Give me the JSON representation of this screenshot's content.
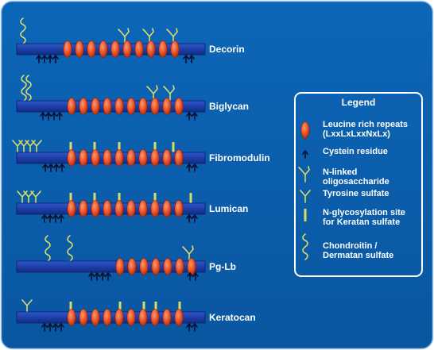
{
  "colors": {
    "background": "#0a5fae",
    "frame": "#ffffff",
    "core": "#1d3fa8",
    "core_edge": "#0b1f6e",
    "repeat": "#e8542a",
    "repeat_edge": "#8a1c08",
    "glycan": "#d8dc6a",
    "cysteine": "#0a1030"
  },
  "proteins": [
    {
      "name": "Decorin",
      "repeats": 10,
      "glycan_icons": [
        "chondroitin-dermatan-sulfate",
        "n-linked-oligosaccharide"
      ]
    },
    {
      "name": "Biglycan",
      "repeats": 10,
      "glycan_icons": [
        "chondroitin-dermatan-sulfate",
        "n-linked-oligosaccharide"
      ]
    },
    {
      "name": "Fibromodulin",
      "repeats": 10,
      "glycan_icons": [
        "tyrosine-sulfate",
        "n-glycosylation-site"
      ]
    },
    {
      "name": "Lumican",
      "repeats": 10,
      "glycan_icons": [
        "tyrosine-sulfate",
        "n-glycosylation-site"
      ]
    },
    {
      "name": "Pg-Lb",
      "repeats": 7,
      "glycan_icons": [
        "chondroitin-dermatan-sulfate",
        "n-linked-oligosaccharide"
      ]
    },
    {
      "name": "Keratocan",
      "repeats": 10,
      "glycan_icons": [
        "tyrosine-sulfate",
        "n-glycosylation-site"
      ]
    }
  ],
  "legend": {
    "title": "Legend",
    "items": [
      {
        "icon": "leucine-rich-repeat",
        "lines": [
          "Leucine rich repeats",
          "(LxxLxLxxNxLx)"
        ]
      },
      {
        "icon": "cysteine-residue",
        "lines": [
          "Cystein residue"
        ]
      },
      {
        "icon": "n-linked-oligosaccharide",
        "lines": [
          "N-linked",
          "oligosaccharide"
        ]
      },
      {
        "icon": "tyrosine-sulfate",
        "lines": [
          "Tyrosine sulfate"
        ]
      },
      {
        "icon": "n-glycosylation-site",
        "lines": [
          "N-glycosylation site",
          "for Keratan sulfate"
        ]
      },
      {
        "icon": "chondroitin-dermatan-sulfate",
        "lines": [
          "Chondroitin /",
          "Dermatan sulfate"
        ]
      }
    ]
  }
}
